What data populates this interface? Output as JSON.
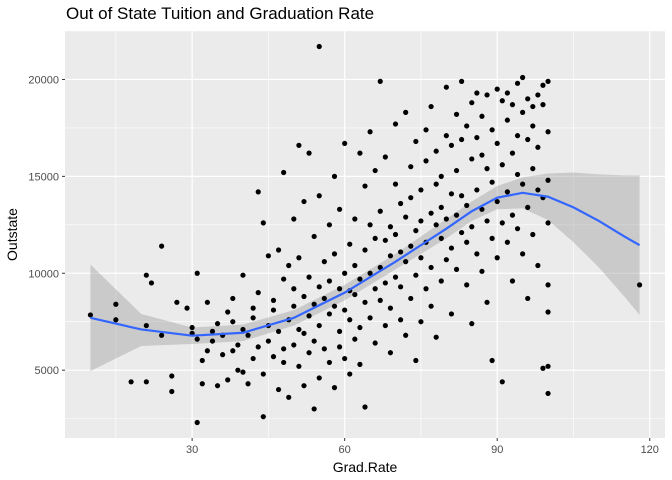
{
  "chart_data": {
    "type": "scatter",
    "title": "Out of State Tuition and Graduation Rate",
    "xlabel": "Grad.Rate",
    "ylabel": "Outstate",
    "xlim": [
      5,
      123
    ],
    "ylim": [
      1500,
      22500
    ],
    "xticks": [
      30,
      60,
      90,
      120
    ],
    "yticks": [
      5000,
      10000,
      15000,
      20000
    ],
    "grid": true,
    "background": "#ebebeb",
    "grid_major_color": "#ffffff",
    "point_color": "#000000",
    "smooth_color": "#3366ff",
    "band_color": "#999999",
    "points": [
      [
        10,
        7850
      ],
      [
        15,
        8400
      ],
      [
        15,
        7600
      ],
      [
        18,
        4400
      ],
      [
        21,
        4400
      ],
      [
        21,
        9900
      ],
      [
        21,
        7300
      ],
      [
        22,
        9500
      ],
      [
        24,
        6800
      ],
      [
        24,
        11400
      ],
      [
        26,
        4700
      ],
      [
        26,
        3900
      ],
      [
        27,
        8500
      ],
      [
        29,
        8200
      ],
      [
        30,
        7200
      ],
      [
        30,
        6900
      ],
      [
        31,
        6600
      ],
      [
        31,
        10000
      ],
      [
        31,
        2300
      ],
      [
        32,
        4300
      ],
      [
        32,
        5500
      ],
      [
        33,
        6000
      ],
      [
        33,
        8500
      ],
      [
        34,
        6500
      ],
      [
        34,
        7000
      ],
      [
        35,
        4200
      ],
      [
        35,
        7400
      ],
      [
        36,
        5800
      ],
      [
        36,
        6800
      ],
      [
        37,
        4500
      ],
      [
        37,
        8000
      ],
      [
        38,
        6000
      ],
      [
        38,
        7500
      ],
      [
        38,
        8700
      ],
      [
        39,
        5000
      ],
      [
        39,
        6300
      ],
      [
        40,
        9900
      ],
      [
        40,
        7100
      ],
      [
        40,
        4900
      ],
      [
        41,
        4300
      ],
      [
        41,
        6800
      ],
      [
        42,
        5600
      ],
      [
        42,
        7700
      ],
      [
        42,
        8200
      ],
      [
        43,
        14200
      ],
      [
        43,
        6200
      ],
      [
        43,
        9000
      ],
      [
        44,
        4800
      ],
      [
        44,
        12600
      ],
      [
        44,
        2600
      ],
      [
        45,
        7300
      ],
      [
        45,
        6500
      ],
      [
        45,
        10900
      ],
      [
        46,
        5700
      ],
      [
        46,
        8600
      ],
      [
        46,
        8100
      ],
      [
        47,
        11200
      ],
      [
        47,
        4000
      ],
      [
        47,
        7000
      ],
      [
        48,
        9700
      ],
      [
        48,
        6100
      ],
      [
        48,
        5400
      ],
      [
        48,
        15200
      ],
      [
        49,
        7600
      ],
      [
        49,
        10400
      ],
      [
        49,
        3600
      ],
      [
        50,
        6300
      ],
      [
        50,
        9200
      ],
      [
        50,
        8300
      ],
      [
        50,
        12800
      ],
      [
        51,
        16600
      ],
      [
        51,
        5200
      ],
      [
        51,
        7100
      ],
      [
        51,
        10800
      ],
      [
        52,
        6900
      ],
      [
        52,
        8800
      ],
      [
        52,
        4200
      ],
      [
        52,
        13700
      ],
      [
        53,
        9800
      ],
      [
        53,
        7800
      ],
      [
        53,
        5900
      ],
      [
        53,
        16200
      ],
      [
        54,
        6500
      ],
      [
        54,
        8400
      ],
      [
        54,
        11900
      ],
      [
        54,
        3000
      ],
      [
        55,
        21700
      ],
      [
        55,
        7300
      ],
      [
        55,
        9300
      ],
      [
        55,
        4600
      ],
      [
        55,
        14000
      ],
      [
        56,
        8700
      ],
      [
        56,
        6100
      ],
      [
        56,
        10600
      ],
      [
        57,
        5400
      ],
      [
        57,
        7900
      ],
      [
        57,
        12500
      ],
      [
        57,
        9600
      ],
      [
        58,
        4100
      ],
      [
        58,
        8300
      ],
      [
        58,
        11000
      ],
      [
        58,
        15000
      ],
      [
        59,
        7000
      ],
      [
        59,
        9200
      ],
      [
        59,
        6200
      ],
      [
        59,
        13300
      ],
      [
        60,
        10000
      ],
      [
        60,
        8100
      ],
      [
        60,
        5600
      ],
      [
        60,
        16700
      ],
      [
        61,
        7600
      ],
      [
        61,
        11500
      ],
      [
        61,
        9100
      ],
      [
        61,
        4800
      ],
      [
        62,
        8900
      ],
      [
        62,
        12800
      ],
      [
        62,
        6600
      ],
      [
        62,
        10400
      ],
      [
        63,
        16200
      ],
      [
        63,
        7200
      ],
      [
        63,
        9700
      ],
      [
        63,
        5300
      ],
      [
        64,
        11200
      ],
      [
        64,
        8500
      ],
      [
        64,
        14500
      ],
      [
        64,
        3100
      ],
      [
        65,
        10000
      ],
      [
        65,
        7700
      ],
      [
        65,
        12500
      ],
      [
        65,
        17300
      ],
      [
        66,
        9200
      ],
      [
        66,
        6400
      ],
      [
        66,
        11800
      ],
      [
        66,
        15300
      ],
      [
        67,
        8600
      ],
      [
        67,
        13200
      ],
      [
        67,
        10300
      ],
      [
        67,
        19900
      ],
      [
        68,
        7300
      ],
      [
        68,
        11700
      ],
      [
        68,
        9500
      ],
      [
        68,
        16000
      ],
      [
        69,
        12400
      ],
      [
        69,
        8200
      ],
      [
        69,
        10900
      ],
      [
        69,
        5900
      ],
      [
        70,
        14600
      ],
      [
        70,
        9800
      ],
      [
        70,
        12000
      ],
      [
        70,
        17700
      ],
      [
        71,
        11100
      ],
      [
        71,
        7600
      ],
      [
        71,
        13600
      ],
      [
        71,
        9300
      ],
      [
        72,
        18300
      ],
      [
        72,
        10600
      ],
      [
        72,
        12900
      ],
      [
        72,
        6800
      ],
      [
        73,
        15500
      ],
      [
        73,
        11400
      ],
      [
        73,
        8700
      ],
      [
        73,
        13900
      ],
      [
        74,
        16800
      ],
      [
        74,
        12200
      ],
      [
        74,
        9900
      ],
      [
        74,
        5500
      ],
      [
        75,
        10800
      ],
      [
        75,
        14300
      ],
      [
        75,
        12700
      ],
      [
        75,
        7500
      ],
      [
        76,
        17400
      ],
      [
        76,
        11600
      ],
      [
        76,
        15800
      ],
      [
        76,
        9200
      ],
      [
        77,
        13100
      ],
      [
        77,
        10300
      ],
      [
        77,
        18600
      ],
      [
        77,
        8300
      ],
      [
        78,
        12500
      ],
      [
        78,
        16300
      ],
      [
        78,
        14600
      ],
      [
        78,
        6700
      ],
      [
        79,
        11800
      ],
      [
        79,
        15000
      ],
      [
        79,
        13400
      ],
      [
        79,
        9600
      ],
      [
        80,
        17100
      ],
      [
        80,
        12800
      ],
      [
        80,
        10700
      ],
      [
        80,
        19600
      ],
      [
        81,
        14100
      ],
      [
        81,
        11300
      ],
      [
        81,
        16600
      ],
      [
        81,
        7900
      ],
      [
        82,
        13000
      ],
      [
        82,
        18200
      ],
      [
        82,
        15300
      ],
      [
        82,
        10200
      ],
      [
        83,
        12100
      ],
      [
        83,
        16900
      ],
      [
        83,
        14000
      ],
      [
        83,
        19900
      ],
      [
        84,
        11600
      ],
      [
        84,
        17600
      ],
      [
        84,
        13500
      ],
      [
        84,
        9400
      ],
      [
        85,
        15900
      ],
      [
        85,
        12400
      ],
      [
        85,
        18800
      ],
      [
        85,
        7400
      ],
      [
        86,
        14300
      ],
      [
        86,
        17000
      ],
      [
        86,
        11000
      ],
      [
        86,
        19300
      ],
      [
        87,
        13300
      ],
      [
        87,
        16100
      ],
      [
        87,
        10100
      ],
      [
        87,
        18100
      ],
      [
        88,
        15400
      ],
      [
        88,
        12700
      ],
      [
        88,
        19200
      ],
      [
        88,
        8500
      ],
      [
        89,
        14700
      ],
      [
        89,
        11800
      ],
      [
        89,
        17400
      ],
      [
        89,
        5500
      ],
      [
        90,
        13700
      ],
      [
        90,
        16700
      ],
      [
        90,
        19500
      ],
      [
        90,
        10800
      ],
      [
        91,
        12600
      ],
      [
        91,
        18900
      ],
      [
        91,
        15600
      ],
      [
        91,
        4400
      ],
      [
        92,
        14200
      ],
      [
        92,
        17900
      ],
      [
        92,
        11600
      ],
      [
        92,
        19300
      ],
      [
        93,
        13000
      ],
      [
        93,
        16200
      ],
      [
        93,
        18700
      ],
      [
        93,
        9600
      ],
      [
        94,
        15100
      ],
      [
        94,
        19800
      ],
      [
        94,
        12300
      ],
      [
        94,
        17100
      ],
      [
        95,
        14600
      ],
      [
        95,
        18300
      ],
      [
        95,
        11000
      ],
      [
        95,
        20100
      ],
      [
        96,
        13400
      ],
      [
        96,
        16900
      ],
      [
        96,
        19000
      ],
      [
        96,
        8700
      ],
      [
        97,
        15400
      ],
      [
        97,
        18600
      ],
      [
        97,
        12000
      ],
      [
        97,
        17600
      ],
      [
        98,
        14300
      ],
      [
        98,
        19200
      ],
      [
        98,
        10400
      ],
      [
        98,
        16500
      ],
      [
        99,
        19700
      ],
      [
        99,
        13900
      ],
      [
        99,
        5100
      ],
      [
        99,
        18700
      ],
      [
        100,
        19900
      ],
      [
        100,
        9400
      ],
      [
        100,
        3800
      ],
      [
        100,
        5200
      ],
      [
        100,
        17300
      ],
      [
        100,
        12600
      ],
      [
        100,
        8000
      ],
      [
        100,
        14800
      ],
      [
        118,
        9400
      ]
    ],
    "smooth": [
      [
        10,
        7700
      ],
      [
        20,
        7100
      ],
      [
        30,
        6780
      ],
      [
        40,
        6930
      ],
      [
        50,
        7700
      ],
      [
        60,
        9000
      ],
      [
        70,
        10600
      ],
      [
        80,
        12300
      ],
      [
        85,
        13200
      ],
      [
        90,
        13900
      ],
      [
        95,
        14150
      ],
      [
        100,
        13950
      ],
      [
        105,
        13400
      ],
      [
        110,
        12700
      ],
      [
        115,
        11900
      ],
      [
        118,
        11450
      ]
    ],
    "band_upper": [
      [
        10,
        10450
      ],
      [
        20,
        7900
      ],
      [
        30,
        7200
      ],
      [
        40,
        7350
      ],
      [
        50,
        8100
      ],
      [
        60,
        9400
      ],
      [
        70,
        11000
      ],
      [
        80,
        12800
      ],
      [
        85,
        13700
      ],
      [
        90,
        14500
      ],
      [
        95,
        14950
      ],
      [
        100,
        15150
      ],
      [
        105,
        15200
      ],
      [
        110,
        15100
      ],
      [
        115,
        15050
      ],
      [
        118,
        15050
      ]
    ],
    "band_lower": [
      [
        10,
        4950
      ],
      [
        20,
        6250
      ],
      [
        30,
        6350
      ],
      [
        40,
        6500
      ],
      [
        50,
        7300
      ],
      [
        60,
        8600
      ],
      [
        70,
        10200
      ],
      [
        80,
        11800
      ],
      [
        85,
        12700
      ],
      [
        90,
        13300
      ],
      [
        95,
        13350
      ],
      [
        100,
        12750
      ],
      [
        105,
        11600
      ],
      [
        110,
        10300
      ],
      [
        115,
        8800
      ],
      [
        118,
        7850
      ]
    ]
  }
}
